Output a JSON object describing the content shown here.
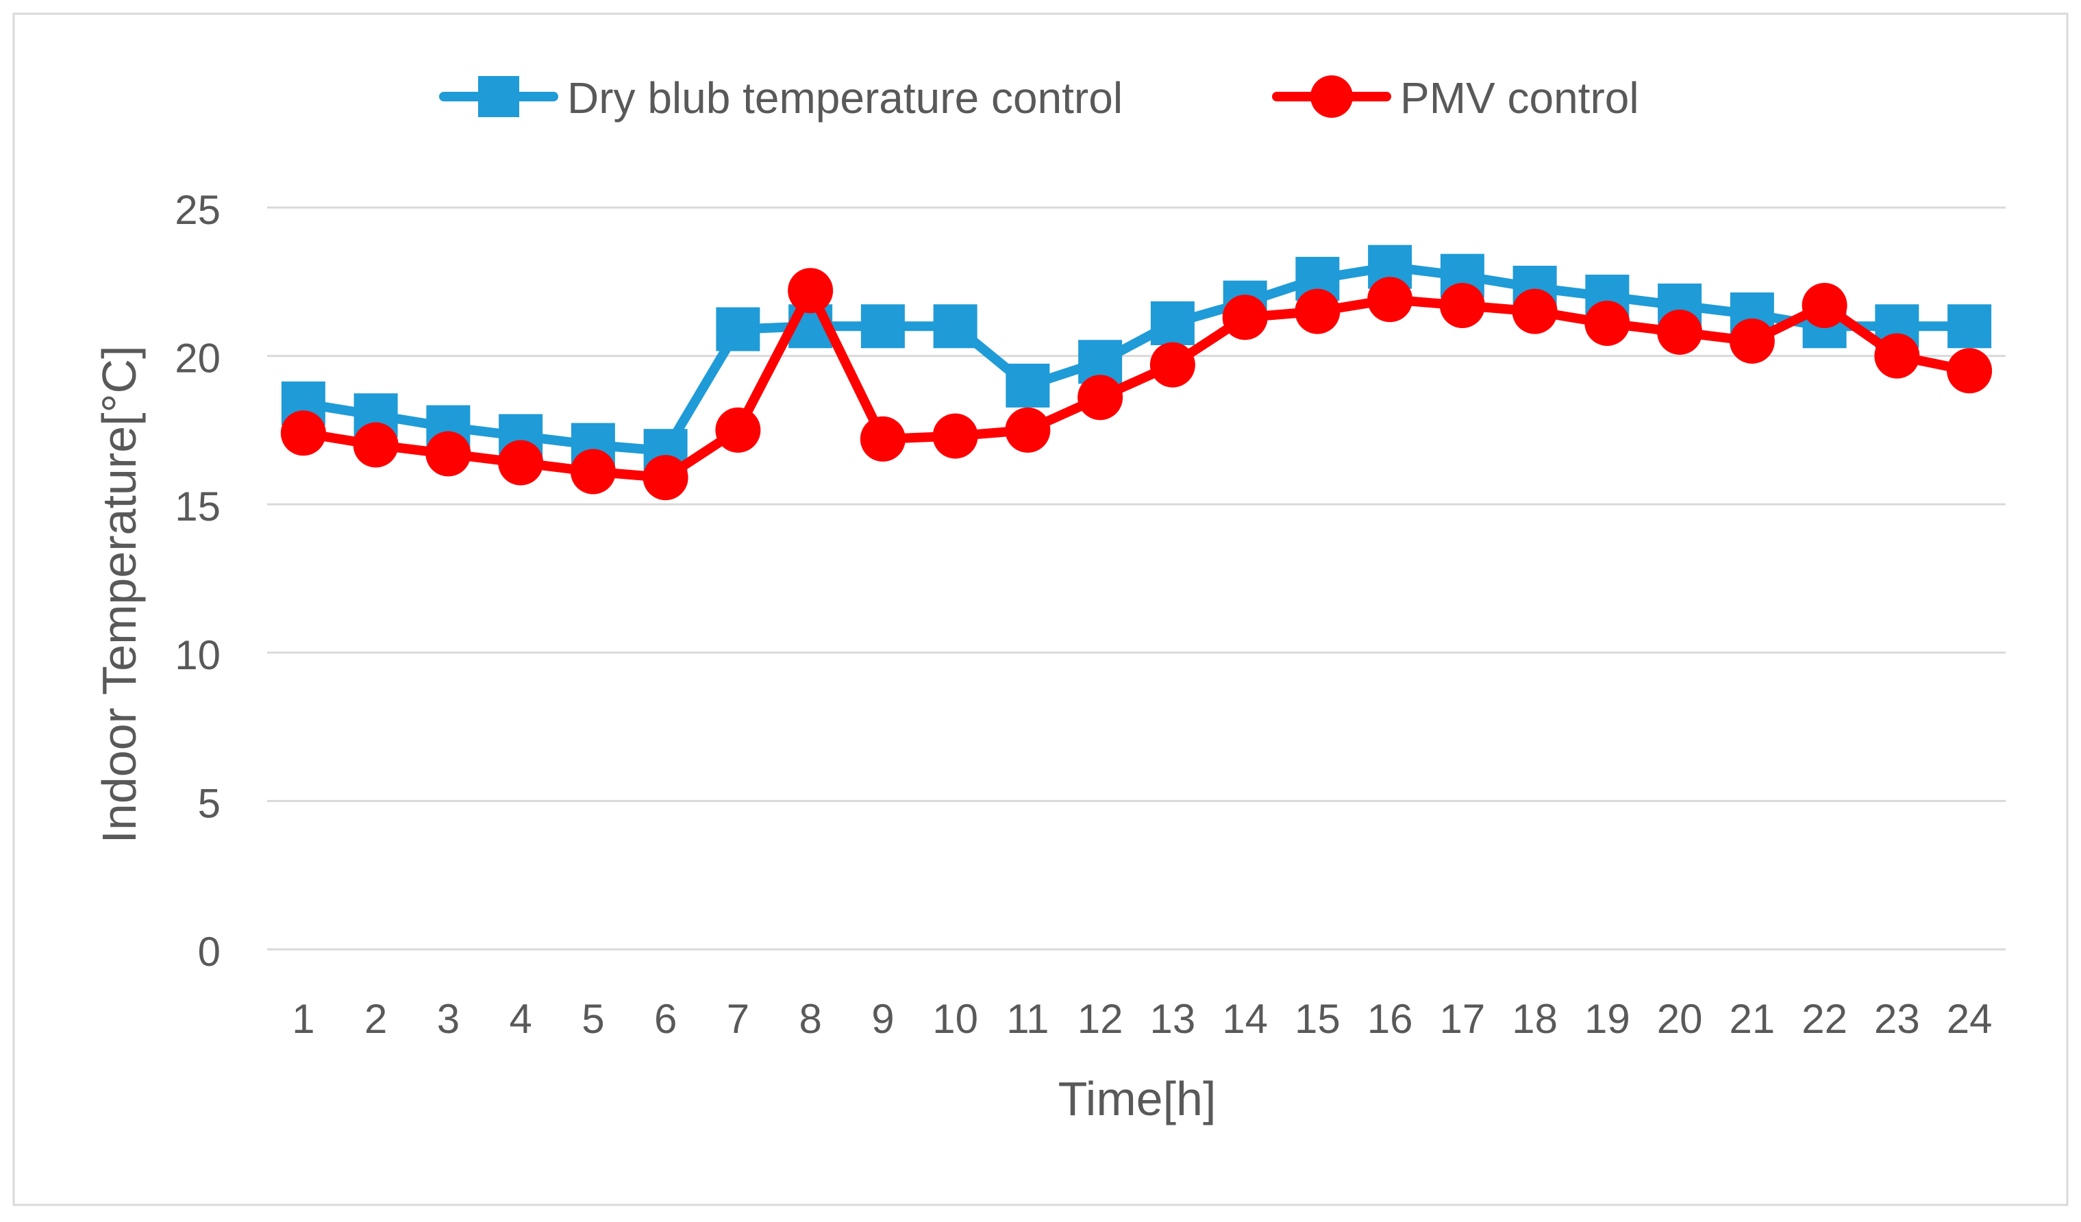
{
  "chart_data": {
    "type": "line",
    "title": "",
    "xlabel": "Time[h]",
    "ylabel": "Indoor Temperature[°C]",
    "ylim": [
      0,
      25
    ],
    "yticks": [
      0,
      5,
      10,
      15,
      20,
      25
    ],
    "grid": true,
    "legend_position": "top-center",
    "categories": [
      "1",
      "2",
      "3",
      "4",
      "5",
      "6",
      "7",
      "8",
      "9",
      "10",
      "11",
      "12",
      "13",
      "14",
      "15",
      "16",
      "17",
      "18",
      "19",
      "20",
      "21",
      "22",
      "23",
      "24"
    ],
    "series": [
      {
        "name": "Dry blub temperature control",
        "color": "#1F9BD7",
        "marker": "square",
        "values": [
          18.4,
          18.0,
          17.6,
          17.3,
          17.0,
          16.8,
          20.9,
          21.0,
          21.0,
          21.0,
          19.0,
          19.8,
          21.1,
          21.8,
          22.6,
          23.0,
          22.7,
          22.3,
          22.0,
          21.7,
          21.4,
          21.0,
          21.0,
          21.0
        ]
      },
      {
        "name": "PMV control",
        "color": "#FF0000",
        "marker": "circle",
        "values": [
          17.4,
          17.0,
          16.7,
          16.4,
          16.1,
          15.9,
          17.5,
          22.2,
          17.2,
          17.3,
          17.5,
          18.6,
          19.7,
          21.3,
          21.5,
          21.9,
          21.7,
          21.5,
          21.1,
          20.8,
          20.5,
          21.7,
          20.0,
          19.5
        ]
      }
    ]
  }
}
